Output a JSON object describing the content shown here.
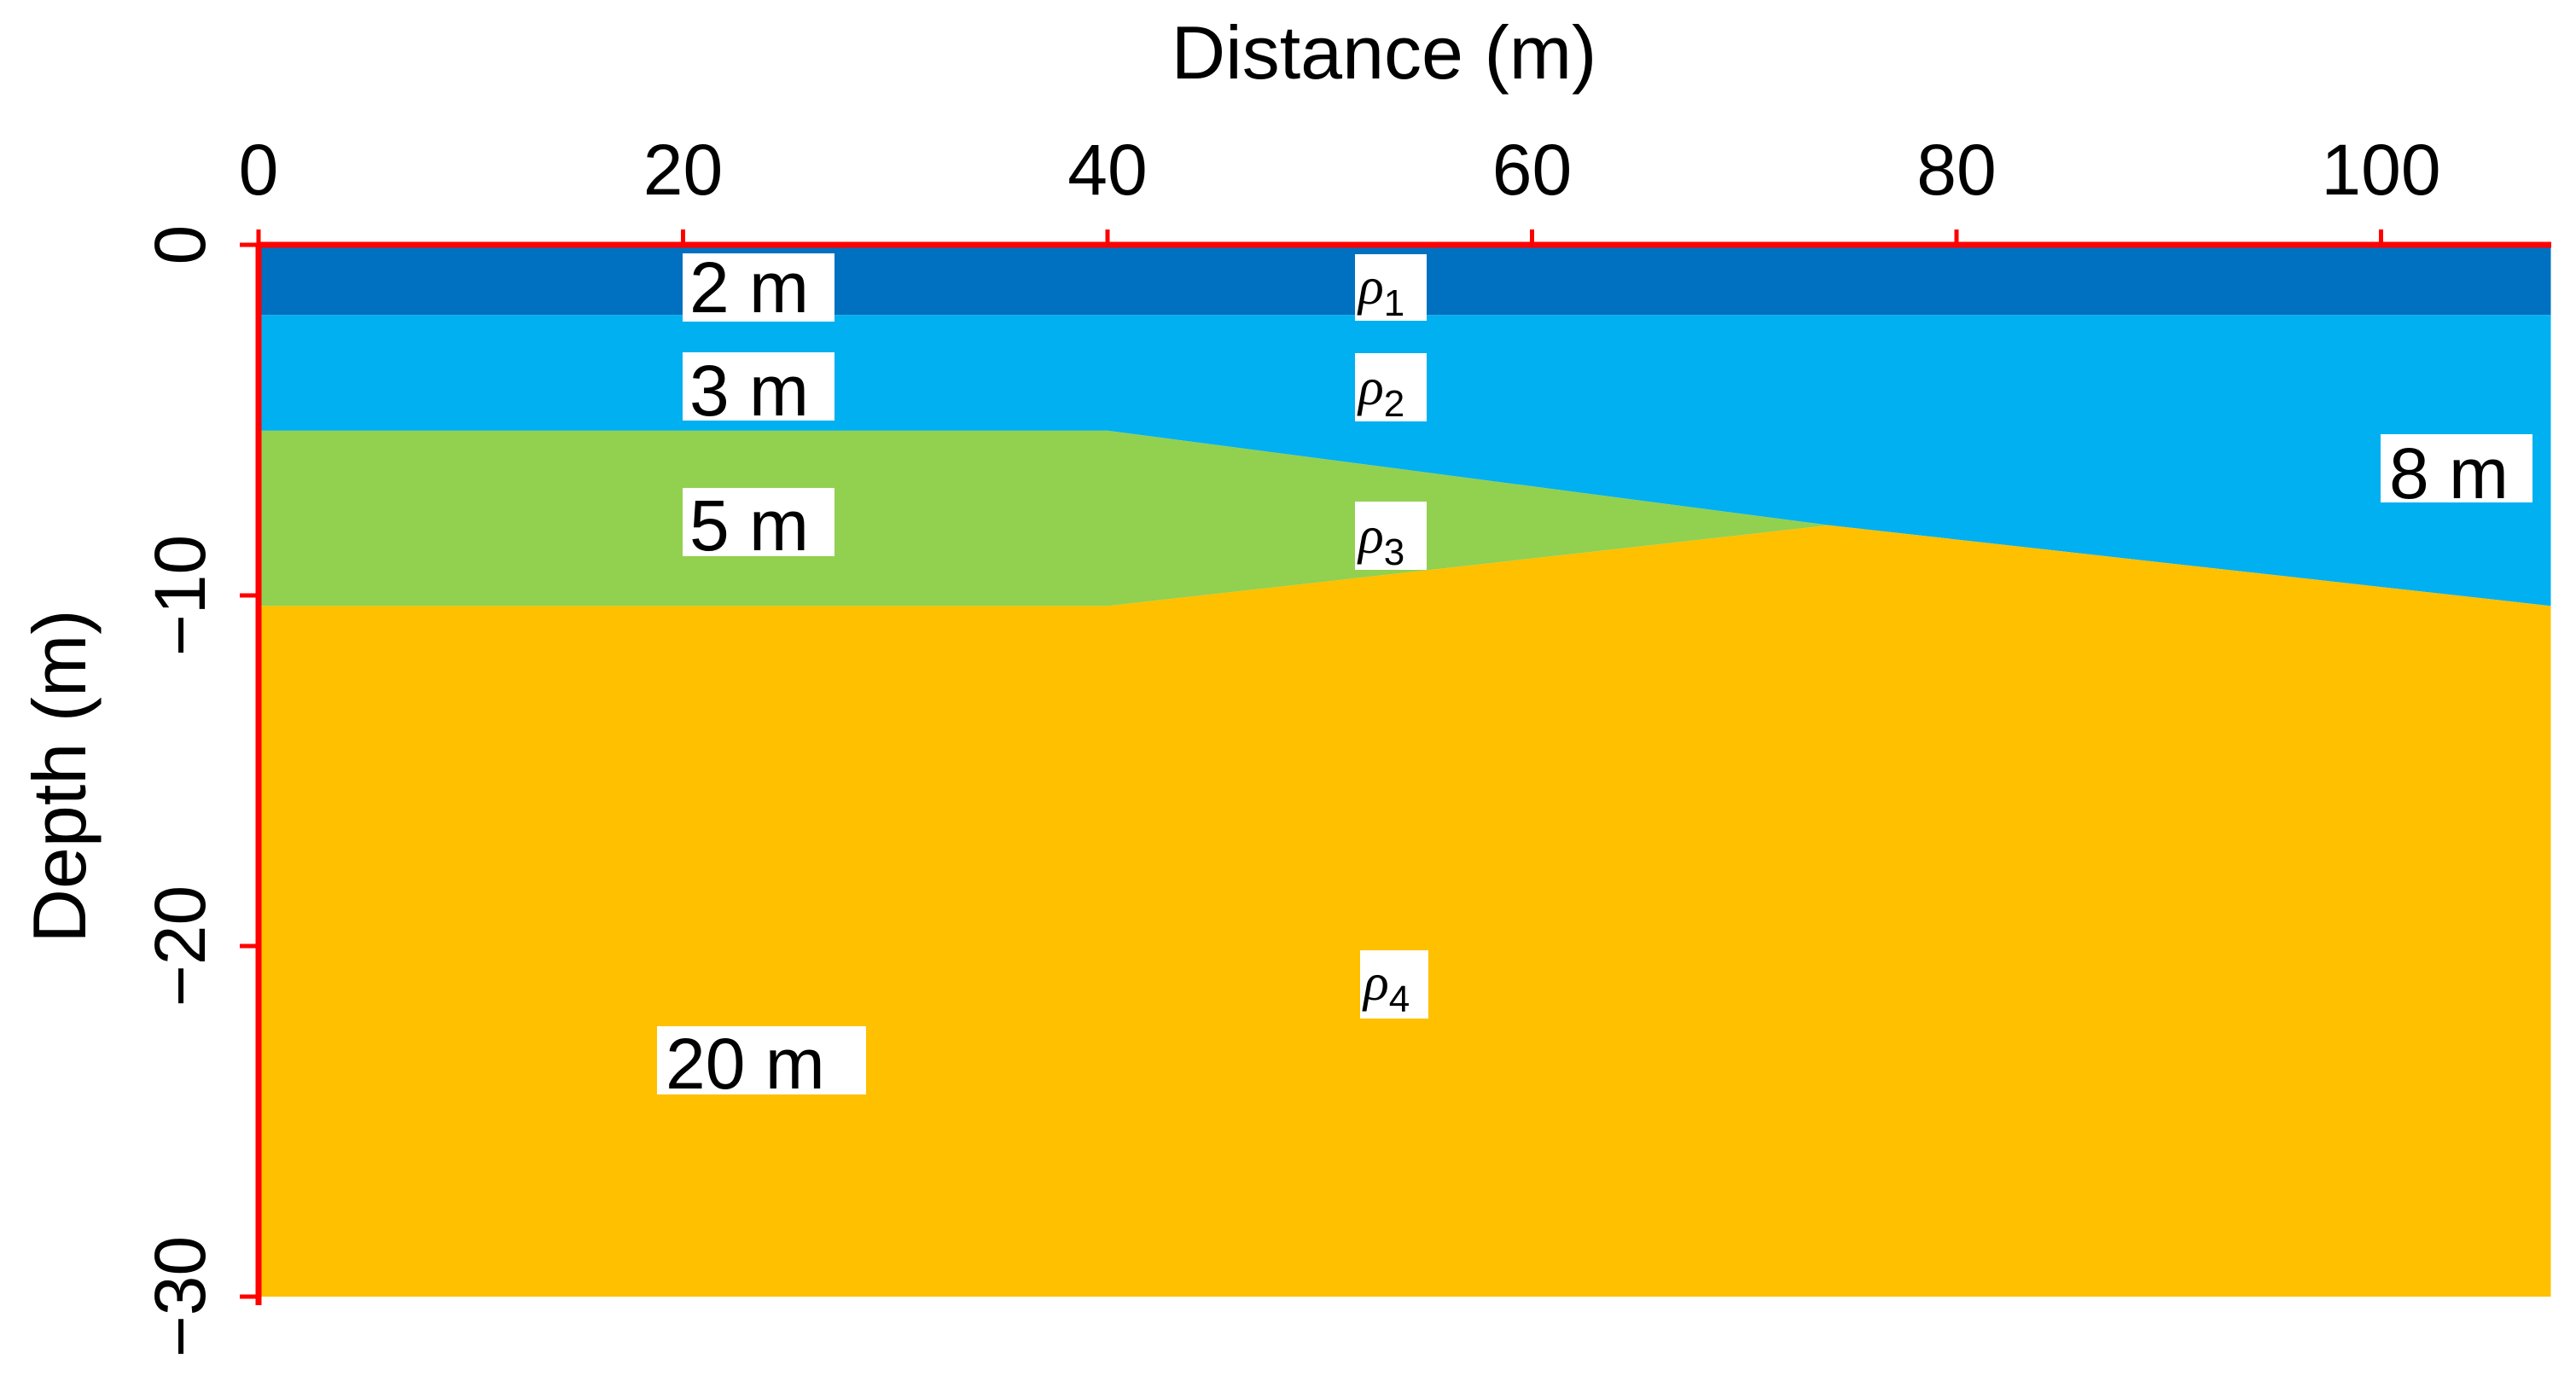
{
  "chart_data": {
    "type": "area",
    "title": "",
    "xlabel": "Distance (m)",
    "ylabel": "Depth (m)",
    "xlim": [
      0,
      108
    ],
    "ylim": [
      -30,
      0
    ],
    "x_ticks": [
      0,
      20,
      40,
      60,
      80,
      100
    ],
    "y_ticks": [
      0,
      -10,
      -20,
      -30
    ],
    "x_tick_labels": [
      "0",
      "20",
      "40",
      "60",
      "80",
      "100"
    ],
    "y_tick_labels": [
      "0",
      "−10",
      "−20",
      "−30"
    ],
    "axis_color": "#ff0000",
    "grid": false,
    "layers": [
      {
        "symbol": "ρ",
        "subscript": "1",
        "color": "#0070c0",
        "thickness_label": "2 m",
        "top": [
          [
            0,
            0
          ],
          [
            108,
            0
          ]
        ],
        "bottom": [
          [
            0,
            -2
          ],
          [
            108,
            -2
          ]
        ]
      },
      {
        "symbol": "ρ",
        "subscript": "2",
        "color": "#00b0f0",
        "thickness_label": "3 m",
        "top": [
          [
            0,
            -2
          ],
          [
            108,
            -2
          ]
        ],
        "bottom": [
          [
            0,
            -5.3
          ],
          [
            40,
            -5.3
          ],
          [
            74,
            -8
          ],
          [
            108,
            -10.3
          ]
        ]
      },
      {
        "symbol": "ρ",
        "subscript": "3",
        "color": "#92d050",
        "thickness_label": "5 m",
        "top": [
          [
            0,
            -5.3
          ],
          [
            40,
            -5.3
          ],
          [
            74,
            -8
          ]
        ],
        "bottom": [
          [
            0,
            -10.3
          ],
          [
            40,
            -10.3
          ],
          [
            74,
            -8
          ]
        ]
      },
      {
        "symbol": "ρ",
        "subscript": "4",
        "color": "#ffc000",
        "thickness_label": "20 m",
        "top": [
          [
            0,
            -10.3
          ],
          [
            40,
            -10.3
          ],
          [
            74,
            -8
          ],
          [
            108,
            -10.3
          ]
        ],
        "bottom": [
          [
            0,
            -30
          ],
          [
            108,
            -30
          ]
        ]
      }
    ],
    "annotations": [
      "2 m",
      "3 m",
      "5 m",
      "8 m",
      "20 m"
    ]
  },
  "labels": {
    "layer1_thickness": "2 m",
    "layer2_thickness": "3 m",
    "layer3_thickness": "5 m",
    "right_thickness": "8 m",
    "layer4_thickness": "20 m",
    "rho_symbol": "ρ",
    "rho1_sub": "1",
    "rho2_sub": "2",
    "rho3_sub": "3",
    "rho4_sub": "4"
  }
}
